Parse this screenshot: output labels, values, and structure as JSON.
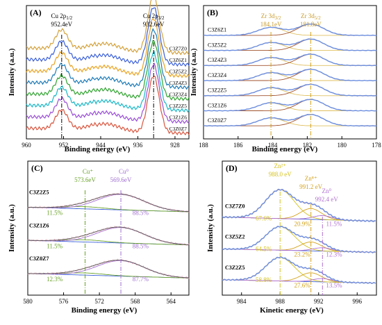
{
  "chart_data": [
    {
      "panel": "(A)",
      "type": "line",
      "xlabel": "Binding energy (eV)",
      "ylabel": "Intensity (a.u.)",
      "xlim": [
        960,
        925
      ],
      "x_ticks": [
        "960",
        "952",
        "944",
        "936",
        "928"
      ],
      "x_tick_values": [
        960,
        952,
        944,
        936,
        928
      ],
      "peak_labels": [
        {
          "line1": "Cu 2p1/2",
          "line2": "952.4eV",
          "x": 952.4
        },
        {
          "line1": "Cu 2p3/2",
          "line2": "932.6eV",
          "x": 932.6
        }
      ],
      "series": [
        {
          "name": "C3Z7Z0",
          "color": "#d4a23a",
          "offset": 7
        },
        {
          "name": "C3Z6Z1",
          "color": "#3a5fd9",
          "offset": 6
        },
        {
          "name": "C3Z5Z2",
          "color": "#e8a321",
          "offset": 5
        },
        {
          "name": "C3Z4Z3",
          "color": "#1b7bb7",
          "offset": 4
        },
        {
          "name": "C3Z3Z4",
          "color": "#2fa32f",
          "offset": 3
        },
        {
          "name": "C3Z2Z5",
          "color": "#19b7c7",
          "offset": 2
        },
        {
          "name": "C3Z1Z6",
          "color": "#9b4fd6",
          "offset": 1
        },
        {
          "name": "C3Z0Z7",
          "color": "#d9553e",
          "offset": 0
        }
      ],
      "grid": false
    },
    {
      "panel": "(B)",
      "type": "line",
      "xlabel": "Binding energy (eV)",
      "ylabel": "Intensity (a.u.)",
      "xlim": [
        188,
        178
      ],
      "x_ticks": [
        "188",
        "186",
        "184",
        "182",
        "180",
        "178"
      ],
      "x_tick_values": [
        188,
        186,
        184,
        182,
        180,
        178
      ],
      "peak_labels": [
        {
          "line1": "Zr 3d3/2",
          "line2": "184.1eV",
          "x": 184.1
        },
        {
          "line1": "Zr 3d5/2",
          "line2": "181.8eV",
          "x": 181.8
        }
      ],
      "series": [
        {
          "name": "C3Z6Z1",
          "offset": 6
        },
        {
          "name": "C3Z5Z2",
          "offset": 5
        },
        {
          "name": "C3Z4Z3",
          "offset": 4
        },
        {
          "name": "C3Z3Z4",
          "offset": 3
        },
        {
          "name": "C3Z2Z5",
          "offset": 2
        },
        {
          "name": "C3Z1Z6",
          "offset": 1
        },
        {
          "name": "C3Z0Z7",
          "offset": 0
        }
      ],
      "colors": {
        "data": "#6b8fe0",
        "fit": "#f0a8a8",
        "comp1": "#e0c060",
        "comp2": "#a0522d"
      },
      "grid": false
    },
    {
      "panel": "(C)",
      "type": "line",
      "xlabel": "Binding energy (eV)",
      "ylabel": "Intensity (a.u.)",
      "xlim": [
        580,
        562
      ],
      "x_ticks": [
        "580",
        "576",
        "572",
        "568",
        "564"
      ],
      "x_tick_values": [
        580,
        576,
        572,
        568,
        564
      ],
      "peak_labels": [
        {
          "line1": "Cu⁺",
          "line2": "573.6eV",
          "x": 573.6,
          "color": "#6aa32a"
        },
        {
          "line1": "Cu⁰",
          "line2": "569.6eV",
          "x": 569.6,
          "color": "#a070d0"
        }
      ],
      "series": [
        {
          "name": "C3Z2Z5",
          "offset": 2,
          "cu_plus": "11.5%",
          "cu_zero": "88.5%"
        },
        {
          "name": "C3Z1Z6",
          "offset": 1,
          "cu_plus": "11.5%",
          "cu_zero": "88.5%"
        },
        {
          "name": "C3Z0Z7",
          "offset": 0,
          "cu_plus": "12.3%",
          "cu_zero": "87.7%"
        }
      ],
      "grid": false
    },
    {
      "panel": "(D)",
      "type": "line",
      "xlabel": "Kinetic energy (eV)",
      "ylabel": "Intensity (a.u.)",
      "xlim": [
        982,
        998
      ],
      "x_ticks": [
        "984",
        "988",
        "992",
        "996"
      ],
      "x_tick_values": [
        984,
        988,
        992,
        996
      ],
      "peak_labels": [
        {
          "line1": "Zn²⁺",
          "line2": "988.0 eV",
          "x": 988.0,
          "color": "#d4c21a"
        },
        {
          "line1": "Zn⁸⁺",
          "line2": "991.2 eV",
          "x": 991.2,
          "color": "#d4a21a"
        },
        {
          "line1": "Zn⁰",
          "line2": "992.4 eV",
          "x": 992.4,
          "color": "#b070d0"
        }
      ],
      "series": [
        {
          "name": "C3Z7Z0",
          "offset": 2,
          "pct": [
            "67.6%",
            "20.9%",
            "11.5%"
          ]
        },
        {
          "name": "C3Z5Z2",
          "offset": 1,
          "pct": [
            "64.5%",
            "23.2%",
            "12.3%"
          ]
        },
        {
          "name": "C3Z2Z5",
          "offset": 0,
          "pct": [
            "58.8%",
            "27.6%",
            "13.5%"
          ]
        }
      ],
      "grid": false
    }
  ]
}
